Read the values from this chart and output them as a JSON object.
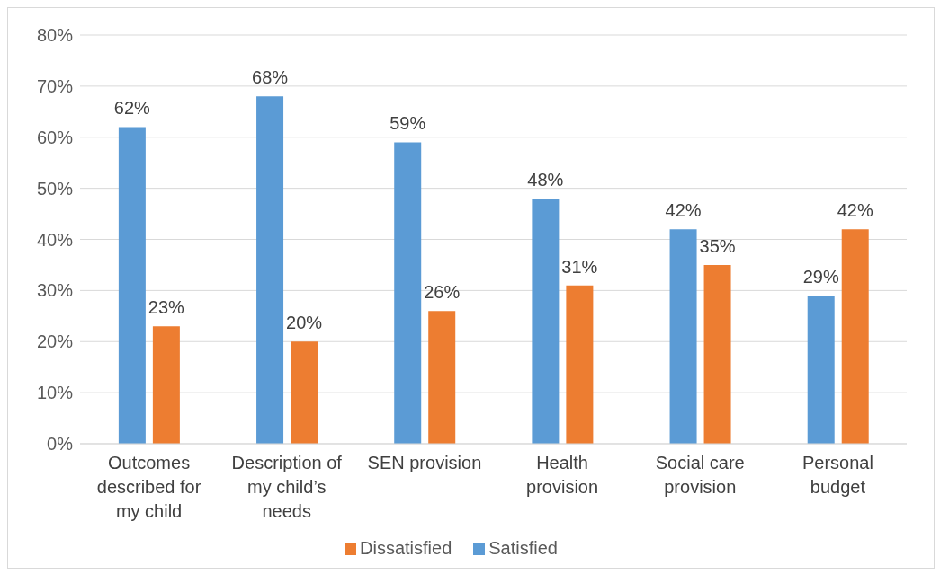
{
  "chart_data": {
    "type": "bar",
    "categories": [
      "Outcomes described for my child",
      "Description of my child’s needs",
      "SEN provision",
      "Health provision",
      "Social care provision",
      "Personal budget"
    ],
    "series": [
      {
        "name": "Satisfied",
        "color": "#5b9bd5",
        "values": [
          62,
          68,
          59,
          48,
          42,
          29
        ],
        "value_labels": [
          "62%",
          "68%",
          "59%",
          "48%",
          "42%",
          "29%"
        ]
      },
      {
        "name": "Dissatisfied",
        "color": "#ed7d31",
        "values": [
          23,
          20,
          26,
          31,
          35,
          42
        ],
        "value_labels": [
          "23%",
          "20%",
          "26%",
          "31%",
          "35%",
          "42%"
        ]
      }
    ],
    "ylim": [
      0,
      80
    ],
    "yticks": [
      {
        "value": 0,
        "label": "0%"
      },
      {
        "value": 10,
        "label": "10%"
      },
      {
        "value": 20,
        "label": "20%"
      },
      {
        "value": 30,
        "label": "30%"
      },
      {
        "value": 40,
        "label": "40%"
      },
      {
        "value": 50,
        "label": "50%"
      },
      {
        "value": 60,
        "label": "60%"
      },
      {
        "value": 70,
        "label": "70%"
      },
      {
        "value": 80,
        "label": "80%"
      }
    ],
    "grid": "y",
    "legend": "bottom"
  }
}
